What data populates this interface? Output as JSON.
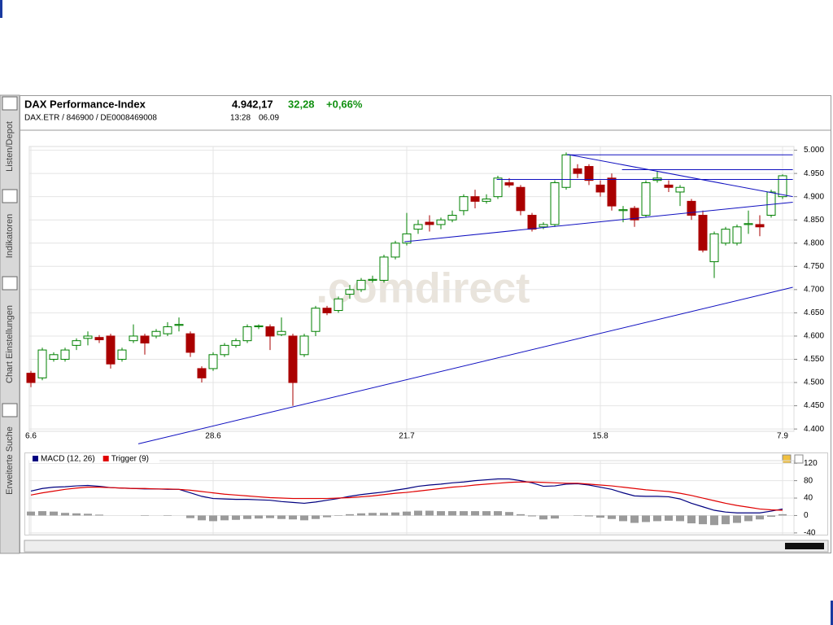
{
  "header": {
    "title": "DAX Performance-Index",
    "price": "4.942,17",
    "change": "32,28",
    "change_pct": "+0,66%",
    "ids": "DAX.ETR  /  846900  /  DE0008469008",
    "time": "13:28",
    "date": "06.09",
    "watermark": ".comdirect"
  },
  "sidebar": [
    "Listen/Depot",
    "Indikatoren",
    "Chart Einstellungen",
    "Erweiterte Suche"
  ],
  "chart_data": [
    {
      "type": "candlestick",
      "categories": [
        "6.6",
        null,
        null,
        null,
        null,
        null,
        null,
        null,
        null,
        null,
        null,
        null,
        null,
        null,
        null,
        null,
        "28.6",
        null,
        null,
        null,
        null,
        null,
        null,
        null,
        null,
        null,
        null,
        null,
        null,
        null,
        null,
        null,
        null,
        "21.7",
        null,
        null,
        null,
        null,
        null,
        null,
        null,
        null,
        null,
        null,
        null,
        null,
        null,
        null,
        null,
        null,
        "15.8",
        null,
        null,
        null,
        null,
        null,
        null,
        null,
        null,
        null,
        null,
        null,
        null,
        null,
        null,
        null,
        "7.9"
      ],
      "open": [
        4520,
        4510,
        4550,
        4550,
        4580,
        4595,
        4597,
        4600,
        4550,
        4590,
        4600,
        4600,
        4605,
        4623,
        4605,
        4530,
        4530,
        4560,
        4580,
        4590,
        4620,
        4620,
        4603,
        4600,
        4560,
        4610,
        4660,
        4655,
        4690,
        4700,
        4720,
        4720,
        4770,
        4800,
        4830,
        4845,
        4840,
        4850,
        4870,
        4900,
        4890,
        4900,
        4930,
        4920,
        4860,
        4835,
        4840,
        4920,
        4960,
        4965,
        4925,
        4940,
        4870,
        4875,
        4860,
        4935,
        4925,
        4910,
        4890,
        4860,
        4760,
        4800,
        4800,
        4840,
        4840,
        4860,
        4900
      ],
      "high": [
        4525,
        4575,
        4565,
        4575,
        4595,
        4610,
        4602,
        4605,
        4575,
        4625,
        4605,
        4615,
        4630,
        4640,
        4610,
        4535,
        4565,
        4585,
        4595,
        4625,
        4625,
        4625,
        4640,
        4605,
        4605,
        4665,
        4665,
        4685,
        4710,
        4725,
        4730,
        4775,
        4805,
        4865,
        4850,
        4860,
        4855,
        4870,
        4905,
        4915,
        4905,
        4945,
        4940,
        4925,
        4865,
        4845,
        4935,
        4995,
        4970,
        4970,
        4935,
        4950,
        4880,
        4880,
        4935,
        4955,
        4935,
        4925,
        4895,
        4870,
        4825,
        4835,
        4840,
        4870,
        4860,
        4915,
        4948
      ],
      "low": [
        4490,
        4505,
        4545,
        4545,
        4570,
        4580,
        4585,
        4530,
        4545,
        4585,
        4560,
        4595,
        4600,
        4610,
        4555,
        4500,
        4525,
        4555,
        4575,
        4585,
        4615,
        4570,
        4600,
        4450,
        4555,
        4600,
        4645,
        4650,
        4680,
        4695,
        4715,
        4715,
        4765,
        4795,
        4820,
        4825,
        4830,
        4845,
        4860,
        4875,
        4885,
        4895,
        4920,
        4860,
        4825,
        4830,
        4835,
        4915,
        4940,
        4925,
        4900,
        4870,
        4845,
        4835,
        4855,
        4930,
        4910,
        4880,
        4850,
        4780,
        4725,
        4795,
        4795,
        4820,
        4815,
        4855,
        4895
      ],
      "close": [
        4500,
        4570,
        4560,
        4570,
        4590,
        4600,
        4592,
        4540,
        4570,
        4600,
        4585,
        4610,
        4620,
        4625,
        4565,
        4510,
        4560,
        4580,
        4590,
        4620,
        4622,
        4600,
        4610,
        4500,
        4600,
        4660,
        4650,
        4680,
        4700,
        4720,
        4722,
        4770,
        4800,
        4820,
        4840,
        4840,
        4850,
        4860,
        4900,
        4890,
        4895,
        4940,
        4925,
        4870,
        4830,
        4840,
        4930,
        4990,
        4950,
        4935,
        4910,
        4880,
        4872,
        4850,
        4930,
        4940,
        4920,
        4920,
        4860,
        4785,
        4820,
        4830,
        4835,
        4842,
        4835,
        4910,
        4945
      ],
      "up_color": "#008000",
      "down_color": "#aa0000",
      "trendlines": [
        {
          "x": [
            9.43,
            66.9
          ],
          "y": [
            4368,
            4705
          ]
        },
        {
          "x": [
            32.8,
            66.9
          ],
          "y": [
            4803,
            4888
          ]
        },
        {
          "x": [
            47.1,
            66.9
          ],
          "y": [
            4990,
            4990
          ]
        },
        {
          "x": [
            51.9,
            66.9
          ],
          "y": [
            4958,
            4958
          ]
        },
        {
          "x": [
            40.9,
            66.9
          ],
          "y": [
            4937,
            4937
          ]
        },
        {
          "x": [
            47.1,
            66.9
          ],
          "y": [
            4991,
            4900
          ]
        }
      ],
      "trend_color": "#1010c0",
      "ylim": [
        4395,
        5008
      ],
      "yticks": [
        {
          "value": 4400,
          "label": "4.400"
        },
        {
          "value": 4450,
          "label": "4.450"
        },
        {
          "value": 4500,
          "label": "4.500"
        },
        {
          "value": 4550,
          "label": "4.550"
        },
        {
          "value": 4600,
          "label": "4.600"
        },
        {
          "value": 4650,
          "label": "4.650"
        },
        {
          "value": 4700,
          "label": "4.700"
        },
        {
          "value": 4750,
          "label": "4.750"
        },
        {
          "value": 4800,
          "label": "4.800"
        },
        {
          "value": 4850,
          "label": "4.850"
        },
        {
          "value": 4900,
          "label": "4.900"
        },
        {
          "value": 4950,
          "label": "4.950"
        },
        {
          "value": 5000,
          "label": "5.000"
        }
      ],
      "grid": true
    },
    {
      "type": "line",
      "series": [
        {
          "name": "MACD (12, 26)",
          "color": "#000080",
          "values": [
            56,
            62,
            65,
            66,
            68,
            69,
            67,
            64,
            63,
            62,
            61,
            61,
            60,
            60,
            52,
            44,
            39,
            38,
            37,
            37,
            36,
            35,
            32,
            30,
            28,
            31,
            35,
            39,
            44,
            48,
            51,
            54,
            58,
            62,
            67,
            70,
            72,
            75,
            77,
            80,
            82,
            84,
            84,
            80,
            75,
            67,
            68,
            72,
            73,
            70,
            65,
            60,
            52,
            45,
            44,
            44,
            43,
            38,
            28,
            20,
            12,
            8,
            6,
            6,
            6,
            10,
            15
          ]
        },
        {
          "name": "Trigger (9)",
          "color": "#e00000",
          "values": [
            47,
            52,
            56,
            60,
            63,
            65,
            65,
            64,
            63,
            62,
            62,
            61,
            61,
            60,
            58,
            55,
            52,
            49,
            47,
            45,
            43,
            41,
            40,
            39,
            39,
            39,
            39,
            40,
            41,
            43,
            45,
            48,
            51,
            53,
            56,
            59,
            62,
            65,
            67,
            70,
            72,
            74,
            76,
            77,
            77,
            76,
            75,
            74,
            74,
            72,
            70,
            68,
            65,
            62,
            59,
            57,
            55,
            51,
            46,
            40,
            34,
            28,
            23,
            19,
            15,
            13,
            12
          ]
        }
      ],
      "histogram": {
        "color": "#9a9a9a",
        "values": [
          9,
          10,
          9,
          6,
          5,
          4,
          2,
          0,
          0,
          0,
          -1,
          0,
          -1,
          0,
          -6,
          -11,
          -13,
          -11,
          -10,
          -8,
          -7,
          -6,
          -8,
          -9,
          -11,
          -8,
          -4,
          -1,
          3,
          5,
          6,
          6,
          7,
          9,
          11,
          11,
          10,
          10,
          10,
          10,
          10,
          10,
          8,
          3,
          -2,
          -9,
          -7,
          0,
          -1,
          -2,
          -5,
          -8,
          -13,
          -17,
          -15,
          -13,
          -12,
          -13,
          -18,
          -20,
          -22,
          -20,
          -17,
          -13,
          -9,
          -3,
          3
        ]
      },
      "ylim": [
        -44,
        126
      ],
      "yticks": [
        120,
        80,
        40,
        0,
        -40
      ],
      "grid": true
    }
  ]
}
